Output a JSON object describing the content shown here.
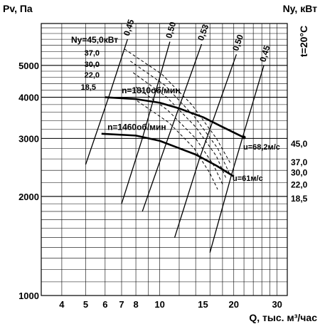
{
  "chart_data": {
    "type": "line",
    "title": "",
    "ylabel": "Pv, Па",
    "xlabel": "Q, тыс. м³/час",
    "y2label": "Ny, кВт",
    "temperature_note": "t=20°C",
    "y_scale": "log",
    "x_scale": "log",
    "xlim": [
      3.3,
      33
    ],
    "ylim": [
      1000,
      6700
    ],
    "x_ticks": [
      4,
      5,
      6,
      7,
      8,
      10,
      15,
      20,
      30
    ],
    "y_ticks": [
      1000,
      2000,
      3000,
      4000,
      5000
    ],
    "series": [
      {
        "name": "n=1810об/мин",
        "points": [
          [
            6,
            4000
          ],
          [
            8,
            3950
          ],
          [
            10,
            3850
          ],
          [
            12,
            3700
          ],
          [
            15,
            3480
          ],
          [
            18,
            3250
          ],
          [
            22,
            3020
          ]
        ]
      },
      {
        "name": "n=1460об/мин",
        "points": [
          [
            5.8,
            3100
          ],
          [
            8,
            3060
          ],
          [
            10,
            2950
          ],
          [
            12,
            2800
          ],
          [
            14,
            2680
          ],
          [
            17,
            2480
          ],
          [
            20,
            2300
          ]
        ]
      }
    ],
    "efficiency_label_series": [
      "0,45",
      "0,50",
      "0,53",
      "0,50",
      "0,45"
    ],
    "efficiency_lines": [
      {
        "label": "0,45",
        "points": [
          [
            5.0,
            2500
          ],
          [
            6.2,
            4000
          ],
          [
            7.4,
            6000
          ]
        ]
      },
      {
        "label": "0,50",
        "points": [
          [
            7.0,
            1900
          ],
          [
            8.5,
            3000
          ],
          [
            11.0,
            5900
          ]
        ]
      },
      {
        "label": "0,53",
        "points": [
          [
            8.5,
            1800
          ],
          [
            10.8,
            3000
          ],
          [
            14.8,
            5800
          ]
        ]
      },
      {
        "label": "0,50",
        "points": [
          [
            11.5,
            1500
          ],
          [
            14.5,
            2600
          ],
          [
            20.5,
            5400
          ]
        ]
      },
      {
        "label": "0,45",
        "points": [
          [
            16.0,
            1350
          ],
          [
            19.5,
            2300
          ],
          [
            26.5,
            5000
          ]
        ]
      }
    ],
    "power_axis_ticks": [
      "45,0",
      "37,0",
      "30,0",
      "22,0",
      "18,5"
    ],
    "power_axis_values": [
      2900,
      2550,
      2370,
      2180,
      1980
    ],
    "power_inset_labels": [
      "Ny=45,0кВт",
      "37,0",
      "30,0",
      "22,0",
      "18,5"
    ],
    "annotations": [
      "u=68,2м/с",
      "u=61м/с"
    ]
  }
}
